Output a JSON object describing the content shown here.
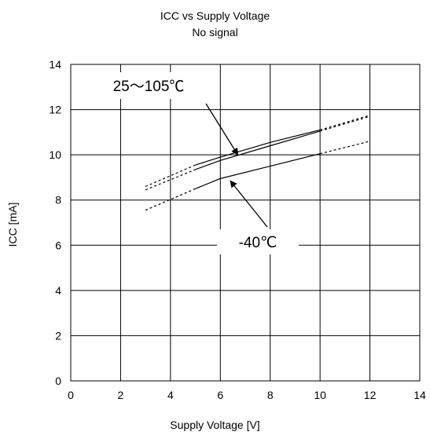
{
  "chart_data": {
    "type": "line",
    "title": "ICC vs Supply Voltage",
    "subtitle": "No signal",
    "xlabel": "Supply Voltage [V]",
    "ylabel": "ICC [mA]",
    "xlim": [
      0,
      14
    ],
    "ylim": [
      0,
      14
    ],
    "xticks": [
      "0",
      "2",
      "4",
      "6",
      "8",
      "10",
      "12",
      "14"
    ],
    "yticks": [
      "0",
      "2",
      "4",
      "6",
      "8",
      "10",
      "12",
      "14"
    ],
    "grid": true,
    "series": [
      {
        "name": "25～105℃",
        "points": [
          {
            "x": 3,
            "y": 8.45,
            "style": "dashed"
          },
          {
            "x": 5,
            "y": 9.35,
            "style": "dashed"
          },
          {
            "x": 5,
            "y": 9.35,
            "style": "solid"
          },
          {
            "x": 6,
            "y": 9.75,
            "style": "solid"
          },
          {
            "x": 8,
            "y": 10.4,
            "style": "solid"
          },
          {
            "x": 10,
            "y": 11.05,
            "style": "solid"
          },
          {
            "x": 10,
            "y": 11.05,
            "style": "dashed"
          },
          {
            "x": 12,
            "y": 11.7,
            "style": "dashed"
          }
        ]
      },
      {
        "name": "25～105℃",
        "points": [
          {
            "x": 3,
            "y": 8.6,
            "style": "dashed"
          },
          {
            "x": 5,
            "y": 9.55,
            "style": "dashed"
          },
          {
            "x": 5,
            "y": 9.55,
            "style": "solid"
          },
          {
            "x": 6,
            "y": 9.9,
            "style": "solid"
          },
          {
            "x": 8,
            "y": 10.55,
            "style": "solid"
          },
          {
            "x": 10,
            "y": 11.1,
            "style": "solid"
          },
          {
            "x": 10,
            "y": 11.1,
            "style": "dashed"
          },
          {
            "x": 12,
            "y": 11.75,
            "style": "dashed"
          }
        ]
      },
      {
        "name": "-40℃",
        "points": [
          {
            "x": 3,
            "y": 7.55,
            "style": "dashed"
          },
          {
            "x": 5,
            "y": 8.5,
            "style": "dashed"
          },
          {
            "x": 5,
            "y": 8.5,
            "style": "solid"
          },
          {
            "x": 6,
            "y": 8.95,
            "style": "solid"
          },
          {
            "x": 8,
            "y": 9.5,
            "style": "solid"
          },
          {
            "x": 10,
            "y": 10.05,
            "style": "solid"
          },
          {
            "x": 10,
            "y": 10.05,
            "style": "dashed"
          },
          {
            "x": 12,
            "y": 10.6,
            "style": "dashed"
          }
        ]
      }
    ],
    "annotations": [
      {
        "text": "25～105℃",
        "arrow_to": {
          "x": 6.7,
          "y": 10.0
        }
      },
      {
        "text": "-40℃",
        "arrow_to": {
          "x": 6.4,
          "y": 8.85
        }
      }
    ]
  }
}
